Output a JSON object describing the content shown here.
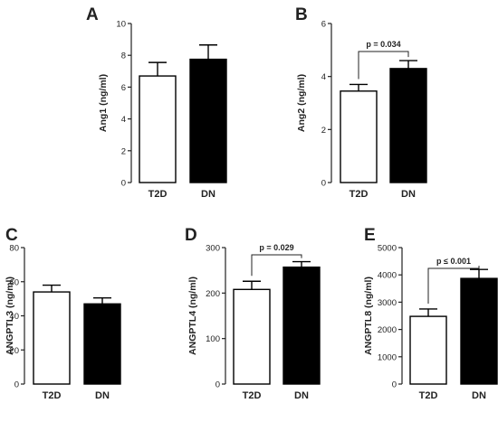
{
  "chart_data": [
    {
      "letter": "A",
      "type": "bar",
      "categories": [
        "T2D",
        "DN"
      ],
      "values": [
        6.7,
        7.75
      ],
      "errors": [
        0.85,
        0.9
      ],
      "bar_colors": [
        "#ffffff",
        "#000000"
      ],
      "ylabel": "Ang1 (ng/ml)",
      "ylim": [
        0,
        10
      ],
      "yticks": [
        0,
        2,
        4,
        6,
        8,
        10
      ],
      "pvalue": ""
    },
    {
      "letter": "B",
      "type": "bar",
      "categories": [
        "T2D",
        "DN"
      ],
      "values": [
        3.45,
        4.3
      ],
      "errors": [
        0.25,
        0.3
      ],
      "bar_colors": [
        "#ffffff",
        "#000000"
      ],
      "ylabel": "Ang2 (ng/ml)",
      "ylim": [
        0,
        6
      ],
      "yticks": [
        0,
        2,
        4,
        6
      ],
      "pvalue": "p = 0.034"
    },
    {
      "letter": "C",
      "type": "bar",
      "categories": [
        "T2D",
        "DN"
      ],
      "values": [
        54,
        47
      ],
      "errors": [
        4,
        3.5
      ],
      "bar_colors": [
        "#ffffff",
        "#000000"
      ],
      "ylabel": "ANGPTL3 (ng/ml)",
      "ylim": [
        0,
        80
      ],
      "yticks": [
        0,
        20,
        40,
        60,
        80
      ],
      "pvalue": ""
    },
    {
      "letter": "D",
      "type": "bar",
      "categories": [
        "T2D",
        "DN"
      ],
      "values": [
        208,
        257
      ],
      "errors": [
        18,
        12
      ],
      "bar_colors": [
        "#ffffff",
        "#000000"
      ],
      "ylabel": "ANGPTL4 (ng/ml)",
      "ylim": [
        0,
        300
      ],
      "yticks": [
        0,
        100,
        200,
        300
      ],
      "pvalue": "p = 0.029"
    },
    {
      "letter": "E",
      "type": "bar",
      "categories": [
        "T2D",
        "DN"
      ],
      "values": [
        2480,
        3870
      ],
      "errors": [
        270,
        330
      ],
      "bar_colors": [
        "#ffffff",
        "#000000"
      ],
      "ylabel": "ANGPTL8 (ng/ml)",
      "ylim": [
        0,
        5000
      ],
      "yticks": [
        0,
        1000,
        2000,
        3000,
        4000,
        5000
      ],
      "pvalue": "p ≤ 0.001"
    }
  ]
}
